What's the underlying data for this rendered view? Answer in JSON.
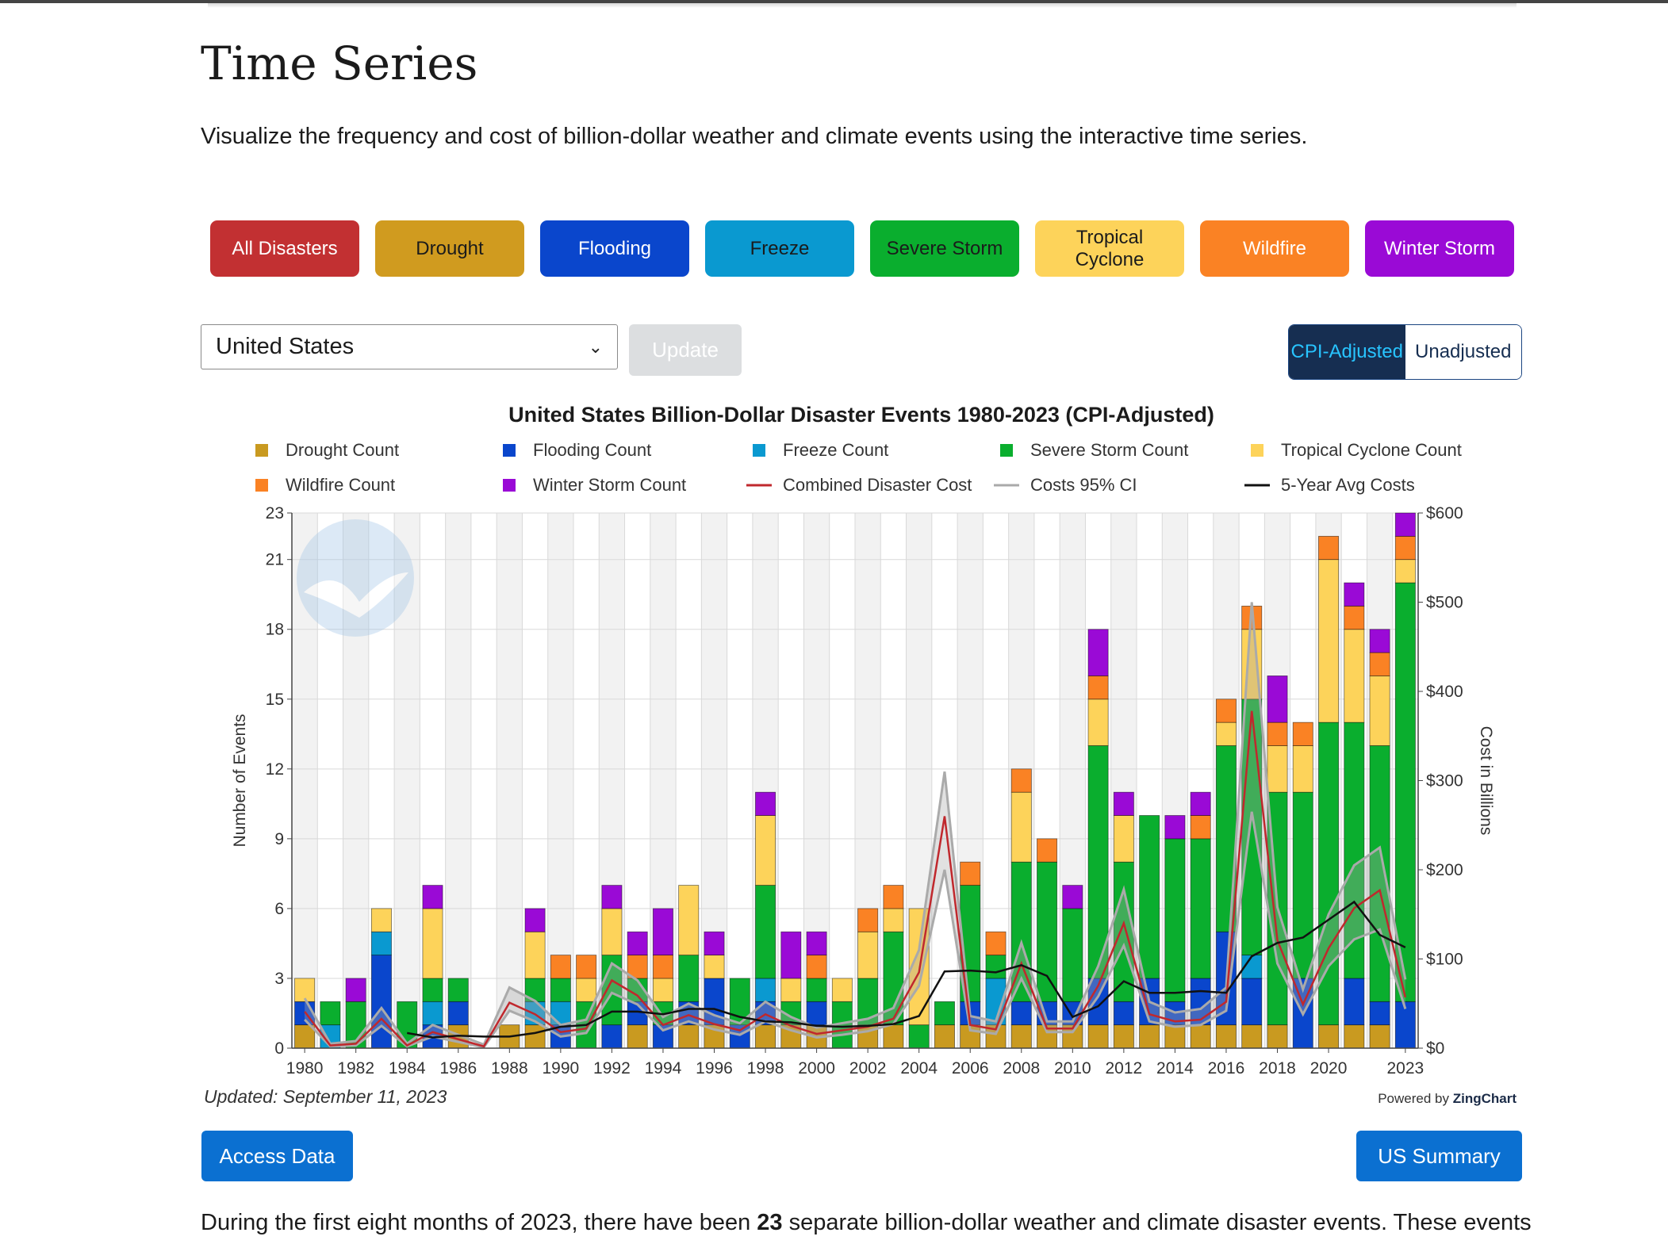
{
  "page": {
    "title": "Time Series",
    "intro": "Visualize the frequency and cost of billion-dollar weather and climate events using the interactive time series."
  },
  "categories": [
    {
      "label": "All Disasters",
      "bg": "#c23032",
      "fg": "#ffffff"
    },
    {
      "label": "Drought",
      "bg": "#d09b1f",
      "fg": "#1b1b1b"
    },
    {
      "label": "Flooding",
      "bg": "#0a46cc",
      "fg": "#ffffff"
    },
    {
      "label": "Freeze",
      "bg": "#0a99d0",
      "fg": "#1b1b1b"
    },
    {
      "label": "Severe Storm",
      "bg": "#0aae2e",
      "fg": "#1b1b1b"
    },
    {
      "label": "Tropical Cyclone",
      "bg": "#fdd35a",
      "fg": "#1b1b1b"
    },
    {
      "label": "Wildfire",
      "bg": "#fa8224",
      "fg": "#ffffff"
    },
    {
      "label": "Winter Storm",
      "bg": "#9a0ad6",
      "fg": "#ffffff"
    }
  ],
  "controls": {
    "region_value": "United States",
    "update_label": "Update",
    "cpi_label": "CPI-Adjusted",
    "unadjusted_label": "Unadjusted"
  },
  "footer": {
    "updated": "Updated: September 11, 2023",
    "powered_by": "Powered by",
    "powered_brand": "ZingChart",
    "access_label": "Access Data",
    "summary_label": "US Summary",
    "para_pre": "During the first eight months of 2023, there have been ",
    "para_count": "23",
    "para_post": " separate billion-dollar weather and climate disaster events. These events"
  },
  "chart_data": {
    "type": "bar",
    "stacked": true,
    "title": "United States Billion-Dollar Disaster Events 1980-2023 (CPI-Adjusted)",
    "ylabel": "Number of Events",
    "y2label": "Cost in Billions",
    "ylim": [
      0,
      23
    ],
    "y_ticks": [
      0,
      3,
      6,
      9,
      12,
      15,
      18,
      21,
      23
    ],
    "y2lim": [
      0,
      600
    ],
    "y2_ticks": [
      "$0",
      "$100",
      "$200",
      "$300",
      "$400",
      "$500",
      "$600"
    ],
    "x_tick_labels": [
      "1980",
      "1982",
      "1984",
      "1986",
      "1988",
      "1990",
      "1992",
      "1994",
      "1996",
      "1998",
      "2000",
      "2002",
      "2004",
      "2006",
      "2008",
      "2010",
      "2012",
      "2014",
      "2016",
      "2018",
      "2020",
      "2023"
    ],
    "x": [
      1980,
      1981,
      1982,
      1983,
      1984,
      1985,
      1986,
      1987,
      1988,
      1989,
      1990,
      1991,
      1992,
      1993,
      1994,
      1995,
      1996,
      1997,
      1998,
      1999,
      2000,
      2001,
      2002,
      2003,
      2004,
      2005,
      2006,
      2007,
      2008,
      2009,
      2010,
      2011,
      2012,
      2013,
      2014,
      2015,
      2016,
      2017,
      2018,
      2019,
      2020,
      2021,
      2022,
      2023
    ],
    "series": [
      {
        "name": "Drought Count",
        "type": "bar",
        "color": "#c99a20",
        "values": [
          1,
          0,
          0,
          0,
          0,
          0,
          1,
          0,
          1,
          1,
          0,
          0,
          0,
          1,
          0,
          1,
          1,
          0,
          1,
          1,
          1,
          0,
          1,
          1,
          0,
          1,
          1,
          1,
          1,
          1,
          1,
          1,
          1,
          1,
          1,
          1,
          1,
          1,
          1,
          0,
          1,
          1,
          1,
          0
        ]
      },
      {
        "name": "Flooding Count",
        "type": "bar",
        "color": "#0a46cc",
        "values": [
          1,
          0,
          0,
          4,
          0,
          1,
          1,
          0,
          0,
          0,
          1,
          0,
          1,
          1,
          1,
          1,
          2,
          1,
          1,
          0,
          1,
          0,
          0,
          0,
          0,
          0,
          1,
          0,
          1,
          1,
          1,
          2,
          1,
          2,
          1,
          2,
          4,
          2,
          0,
          3,
          0,
          2,
          1,
          2
        ]
      },
      {
        "name": "Freeze Count",
        "type": "bar",
        "color": "#0a99d0",
        "values": [
          0,
          1,
          0,
          1,
          0,
          1,
          0,
          0,
          0,
          1,
          1,
          0,
          0,
          0,
          0,
          0,
          0,
          0,
          1,
          0,
          0,
          0,
          0,
          0,
          0,
          0,
          0,
          2,
          0,
          0,
          0,
          0,
          0,
          0,
          0,
          0,
          0,
          1,
          0,
          0,
          0,
          0,
          0,
          0
        ]
      },
      {
        "name": "Severe Storm Count",
        "type": "bar",
        "color": "#0aae2e",
        "values": [
          0,
          1,
          2,
          0,
          2,
          1,
          1,
          0,
          0,
          1,
          1,
          2,
          3,
          1,
          1,
          2,
          0,
          2,
          4,
          1,
          1,
          2,
          2,
          4,
          1,
          1,
          5,
          1,
          6,
          6,
          4,
          10,
          6,
          7,
          7,
          6,
          8,
          11,
          10,
          8,
          13,
          11,
          11,
          18
        ]
      },
      {
        "name": "Tropical Cyclone Count",
        "type": "bar",
        "color": "#fdd35a",
        "values": [
          1,
          0,
          0,
          1,
          0,
          3,
          0,
          0,
          0,
          2,
          0,
          1,
          2,
          0,
          1,
          3,
          1,
          0,
          3,
          1,
          0,
          1,
          2,
          1,
          5,
          0,
          0,
          0,
          3,
          0,
          0,
          2,
          2,
          0,
          0,
          0,
          1,
          3,
          2,
          2,
          7,
          4,
          3,
          1
        ]
      },
      {
        "name": "Wildfire Count",
        "type": "bar",
        "color": "#fa8224",
        "values": [
          0,
          0,
          0,
          0,
          0,
          0,
          0,
          0,
          0,
          0,
          1,
          1,
          0,
          1,
          1,
          0,
          0,
          0,
          0,
          0,
          1,
          0,
          1,
          1,
          0,
          0,
          1,
          1,
          1,
          1,
          0,
          1,
          0,
          0,
          0,
          1,
          1,
          1,
          1,
          1,
          1,
          1,
          1,
          1
        ]
      },
      {
        "name": "Winter Storm Count",
        "type": "bar",
        "color": "#9a0ad6",
        "values": [
          0,
          0,
          1,
          0,
          0,
          1,
          0,
          0,
          0,
          1,
          0,
          0,
          1,
          1,
          2,
          0,
          1,
          0,
          1,
          2,
          1,
          0,
          0,
          0,
          0,
          0,
          0,
          0,
          0,
          0,
          1,
          2,
          1,
          0,
          1,
          1,
          0,
          0,
          2,
          0,
          0,
          1,
          1,
          1
        ]
      },
      {
        "name": "Combined Disaster Cost",
        "type": "line",
        "axis": "y2",
        "color": "#c0282d",
        "values": [
          41,
          3,
          5,
          33,
          3,
          18,
          10,
          2,
          51,
          38,
          18,
          22,
          76,
          59,
          26,
          37,
          27,
          20,
          38,
          25,
          16,
          20,
          24,
          33,
          85,
          260,
          26,
          21,
          95,
          22,
          22,
          70,
          140,
          38,
          30,
          32,
          52,
          378,
          121,
          49,
          112,
          157,
          177,
          57
        ]
      },
      {
        "name": "Costs 95% CI",
        "type": "band",
        "axis": "y2",
        "color": "#aaaaaa",
        "lower": [
          32,
          2,
          3,
          25,
          2,
          13,
          7,
          1,
          42,
          30,
          13,
          17,
          62,
          49,
          20,
          30,
          21,
          15,
          30,
          20,
          12,
          15,
          19,
          27,
          70,
          200,
          20,
          16,
          78,
          18,
          18,
          58,
          115,
          30,
          24,
          26,
          42,
          265,
          95,
          38,
          92,
          122,
          133,
          44
        ],
        "upper": [
          56,
          5,
          8,
          45,
          5,
          26,
          15,
          4,
          68,
          53,
          26,
          32,
          95,
          76,
          35,
          50,
          37,
          28,
          52,
          35,
          23,
          28,
          33,
          45,
          110,
          310,
          36,
          30,
          118,
          30,
          30,
          92,
          178,
          52,
          40,
          44,
          68,
          500,
          158,
          66,
          150,
          205,
          225,
          77
        ]
      },
      {
        "name": "5-Year Avg Costs",
        "type": "line",
        "axis": "y2",
        "color": "#111111",
        "values": [
          null,
          null,
          null,
          null,
          17,
          12,
          14,
          13,
          13,
          17,
          24,
          26,
          41,
          41,
          38,
          44,
          44,
          35,
          30,
          29,
          25,
          24,
          25,
          27,
          36,
          86,
          87,
          85,
          93,
          81,
          35,
          47,
          75,
          62,
          62,
          64,
          62,
          103,
          118,
          124,
          144,
          164,
          127,
          113
        ]
      }
    ]
  }
}
